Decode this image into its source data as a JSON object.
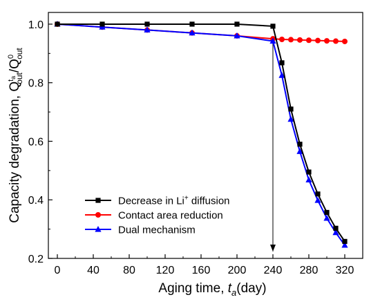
{
  "chart_data": {
    "type": "line",
    "xlabel": {
      "main": "Aging time,",
      "var": "t",
      "sub": "a",
      "unit": "(day)"
    },
    "ylabel": {
      "main": "Capacity degradation,",
      "num": "Q",
      "num_sup": "t",
      "num_sup_sub": "a",
      "num_sub": "out",
      "den": "Q",
      "den_sup": "0",
      "den_sub": "out"
    },
    "xlim": [
      -10,
      340
    ],
    "ylim": [
      0.2,
      1.04
    ],
    "xticks": [
      0,
      40,
      80,
      120,
      160,
      200,
      240,
      280,
      320
    ],
    "yticks": [
      0.2,
      0.4,
      0.6,
      0.8,
      1.0
    ],
    "ytick_labels": [
      "0.2",
      "0.4",
      "0.6",
      "0.8",
      "1.0"
    ],
    "grid": false,
    "legend_position": "bottom-left",
    "annotations": [
      {
        "type": "arrow",
        "x": 240,
        "from_y": 0.94,
        "to_y": 0.2
      }
    ],
    "series": [
      {
        "name": "Decrease in Li",
        "name_sup": "+",
        "name_suffix": " diffusion",
        "color": "#000000",
        "marker": "square",
        "x": [
          0,
          50,
          100,
          150,
          200,
          240,
          250,
          260,
          270,
          280,
          290,
          300,
          310,
          320
        ],
        "y": [
          1.0,
          1.0,
          1.0,
          1.0,
          1.0,
          0.993,
          0.868,
          0.71,
          0.59,
          0.495,
          0.42,
          0.357,
          0.303,
          0.258
        ]
      },
      {
        "name": "Contact area reduction",
        "color": "#ff0000",
        "marker": "circle",
        "x": [
          0,
          50,
          100,
          150,
          200,
          240,
          250,
          260,
          270,
          280,
          290,
          300,
          310,
          320
        ],
        "y": [
          1.0,
          0.99,
          0.98,
          0.97,
          0.96,
          0.95,
          0.948,
          0.947,
          0.946,
          0.945,
          0.944,
          0.943,
          0.942,
          0.941
        ]
      },
      {
        "name": "Dual mechanism",
        "color": "#0000ff",
        "marker": "triangle",
        "x": [
          0,
          50,
          100,
          150,
          200,
          240,
          250,
          260,
          270,
          280,
          290,
          300,
          310,
          320
        ],
        "y": [
          1.0,
          0.99,
          0.98,
          0.97,
          0.96,
          0.942,
          0.825,
          0.675,
          0.565,
          0.468,
          0.398,
          0.337,
          0.288,
          0.245
        ]
      }
    ]
  }
}
